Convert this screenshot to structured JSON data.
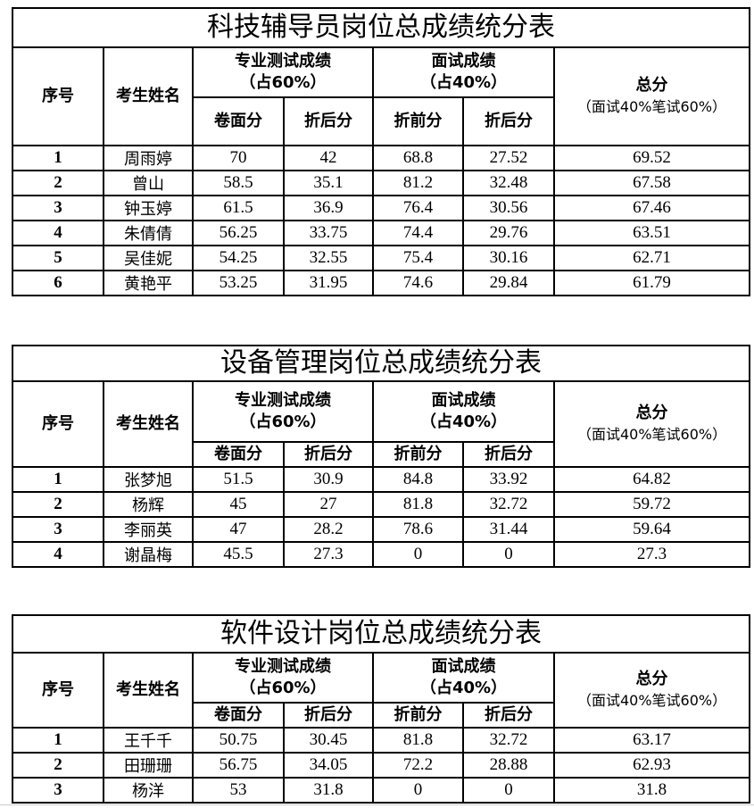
{
  "header_labels": {
    "index": "序号",
    "name": "考生姓名",
    "written_group": "专业测试成绩",
    "written_weight": "（占60%）",
    "interview_group": "面试成绩",
    "interview_weight": "（占40%）",
    "total": "总分",
    "total_formula": "（面试40%笔试60%）",
    "paper_score": "卷面分",
    "written_weighted": "折后分",
    "interview_raw": "折前分",
    "interview_weighted": "折后分"
  },
  "tables": [
    {
      "title": "科技辅导员岗位总成绩统分表",
      "rows": [
        [
          "1",
          "周雨婷",
          "70",
          "42",
          "68.8",
          "27.52",
          "69.52"
        ],
        [
          "2",
          "曾山",
          "58.5",
          "35.1",
          "81.2",
          "32.48",
          "67.58"
        ],
        [
          "3",
          "钟玉婷",
          "61.5",
          "36.9",
          "76.4",
          "30.56",
          "67.46"
        ],
        [
          "4",
          "朱倩倩",
          "56.25",
          "33.75",
          "74.4",
          "29.76",
          "63.51"
        ],
        [
          "5",
          "吴佳妮",
          "54.25",
          "32.55",
          "75.4",
          "30.16",
          "62.71"
        ],
        [
          "6",
          "黄艳平",
          "53.25",
          "31.95",
          "74.6",
          "29.84",
          "61.79"
        ]
      ]
    },
    {
      "title": "设备管理岗位总成绩统分表",
      "rows": [
        [
          "1",
          "张梦旭",
          "51.5",
          "30.9",
          "84.8",
          "33.92",
          "64.82"
        ],
        [
          "2",
          "杨辉",
          "45",
          "27",
          "81.8",
          "32.72",
          "59.72"
        ],
        [
          "3",
          "李丽英",
          "47",
          "28.2",
          "78.6",
          "31.44",
          "59.64"
        ],
        [
          "4",
          "谢晶梅",
          "45.5",
          "27.3",
          "0",
          "0",
          "27.3"
        ]
      ]
    },
    {
      "title": "软件设计岗位总成绩统分表",
      "rows": [
        [
          "1",
          "王千千",
          "50.75",
          "30.45",
          "81.8",
          "32.72",
          "63.17"
        ],
        [
          "2",
          "田珊珊",
          "56.75",
          "34.05",
          "72.2",
          "28.88",
          "62.93"
        ],
        [
          "3",
          "杨洋",
          "53",
          "31.8",
          "0",
          "0",
          "31.8"
        ]
      ]
    }
  ]
}
